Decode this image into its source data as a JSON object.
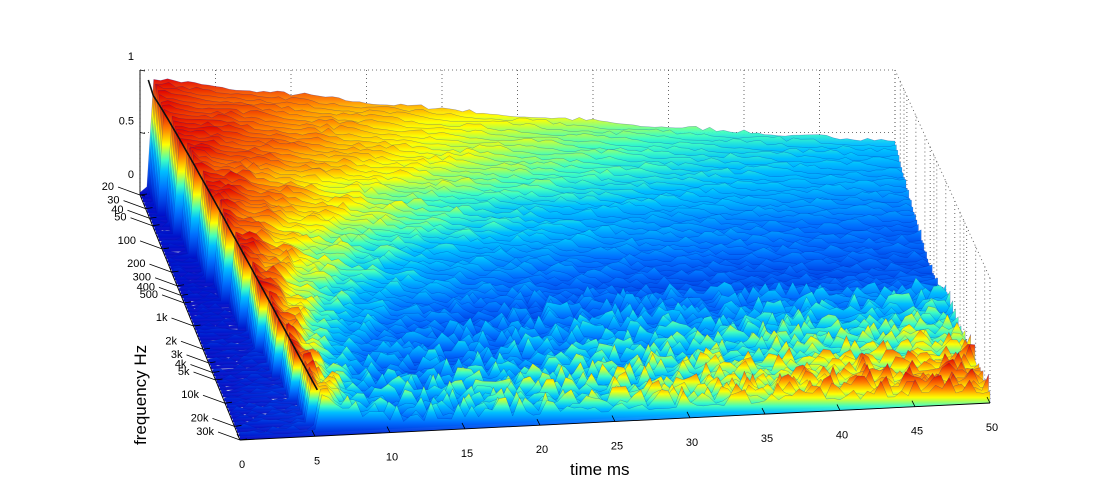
{
  "chart_data": {
    "type": "waterfall",
    "title": "",
    "xlabel": "time   ms",
    "ylabel": "frequency      Hz",
    "zlabel": "",
    "x_ticks": [
      "0",
      "5",
      "10",
      "15",
      "20",
      "25",
      "30",
      "35",
      "40",
      "45",
      "50"
    ],
    "x_range": [
      0,
      50
    ],
    "y_ticks": [
      "20",
      "30",
      "40",
      "50",
      "100",
      "200",
      "300",
      "400",
      "500",
      "1k",
      "2k",
      "3k",
      "4k",
      "5k",
      "10k",
      "20k",
      "30k"
    ],
    "y_values_hz": [
      20,
      30,
      40,
      50,
      100,
      200,
      300,
      400,
      500,
      1000,
      2000,
      3000,
      4000,
      5000,
      10000,
      20000,
      30000
    ],
    "y_range_hz": [
      20,
      30000
    ],
    "y_scale": "log",
    "z_ticks": [
      "0",
      "0.5",
      "1"
    ],
    "z_range": [
      0,
      1
    ],
    "colormap": "jet",
    "grid": true,
    "colors": {
      "low": "#0000c8",
      "mid": "#00ffff",
      "high_mid": "#ffff00",
      "high": "#e00000"
    }
  }
}
